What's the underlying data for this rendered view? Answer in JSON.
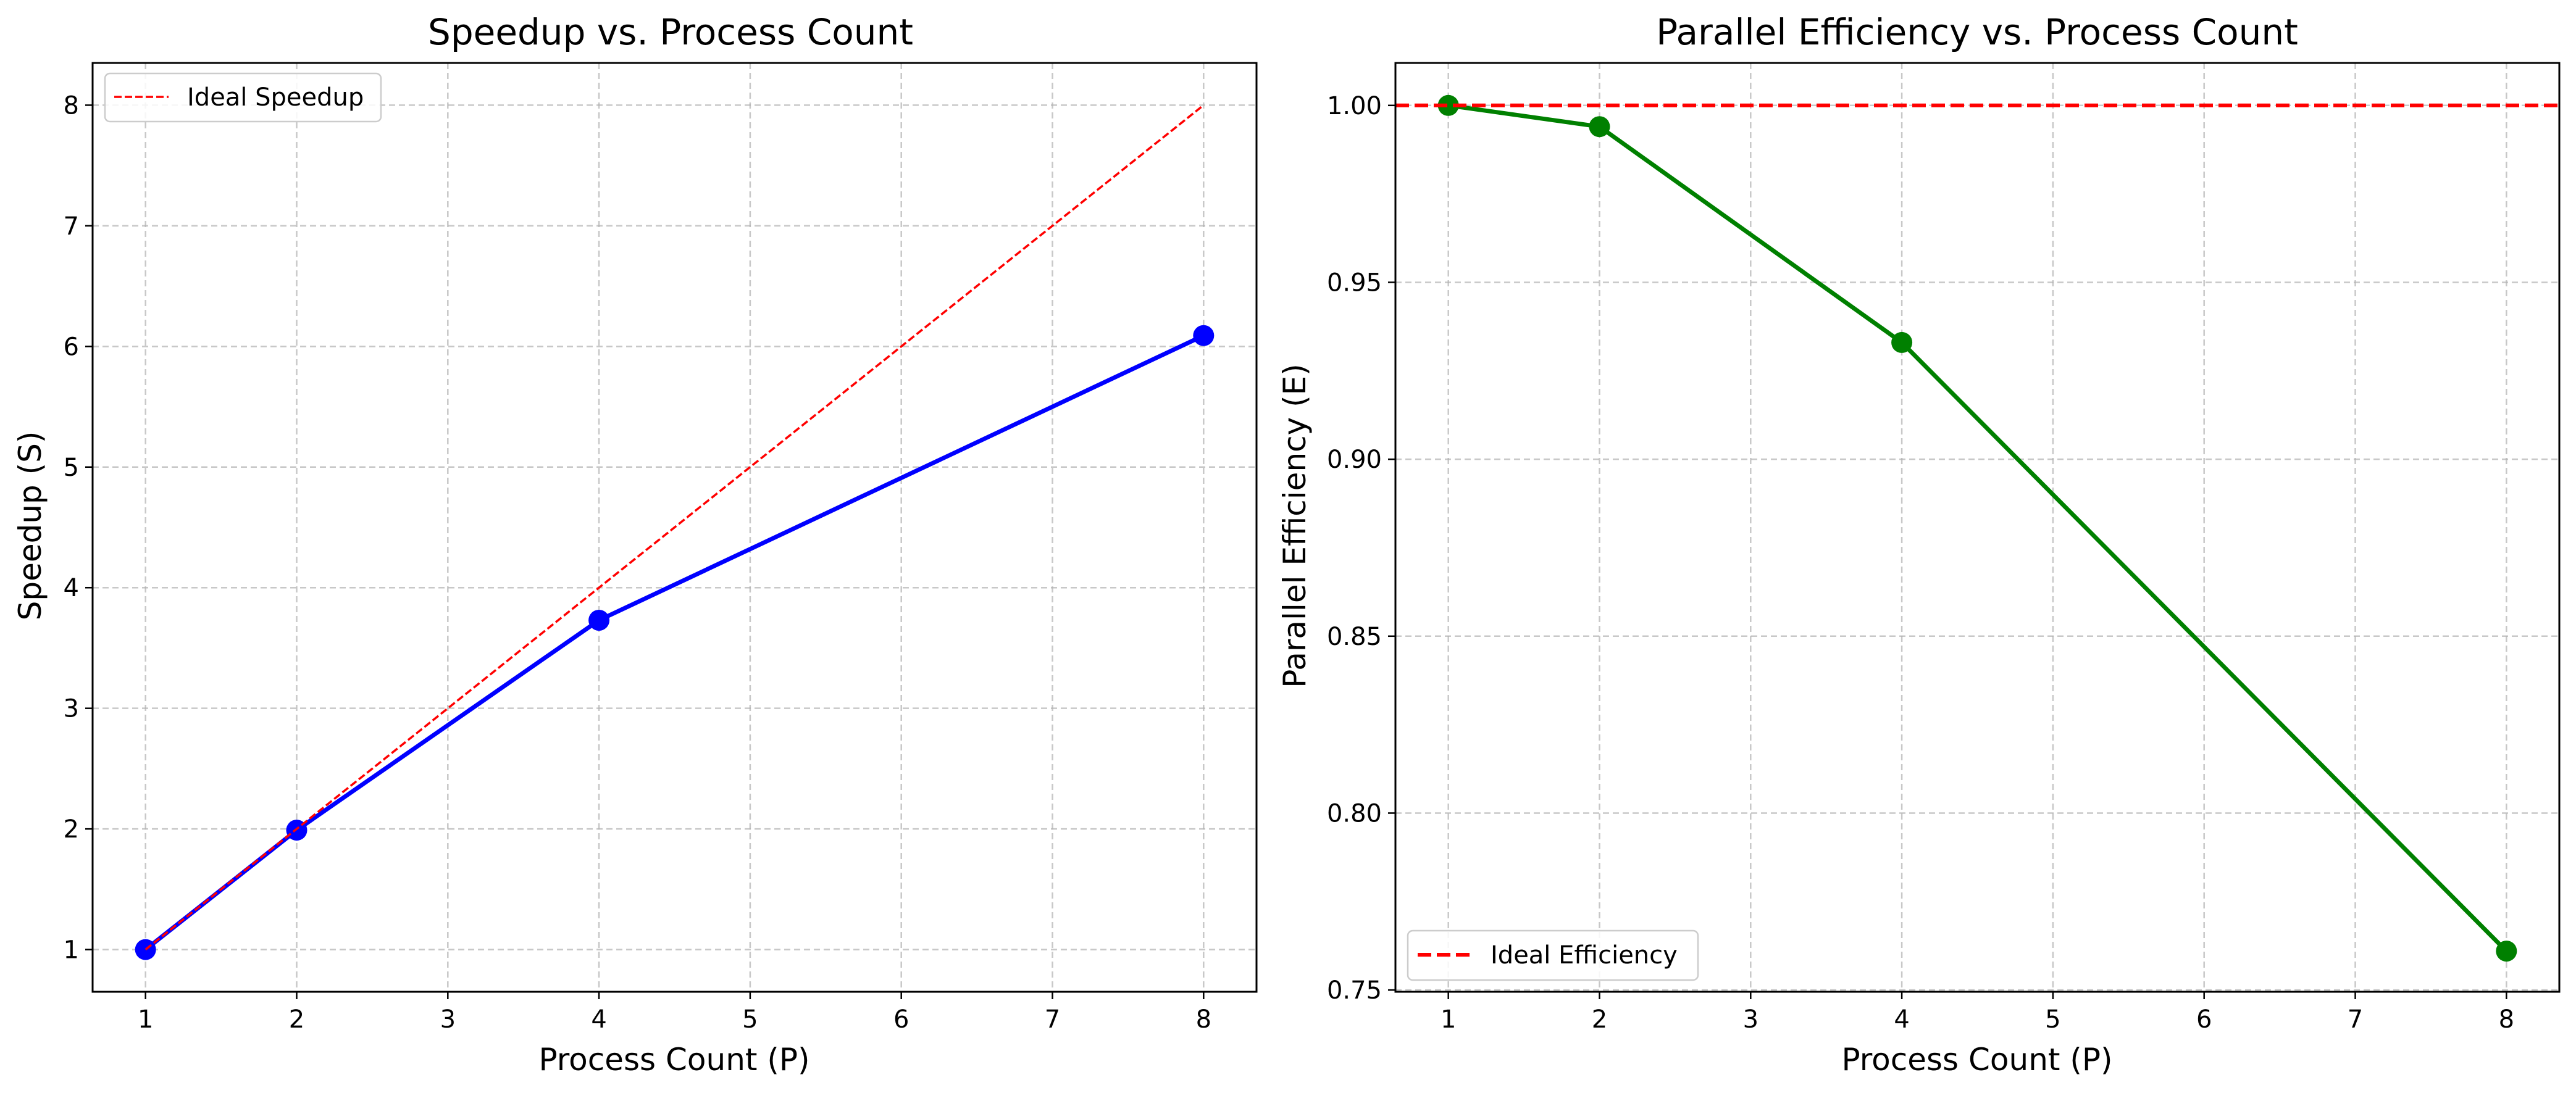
{
  "chart_data": [
    {
      "type": "line",
      "title": "Speedup vs. Process Count",
      "xlabel": "Process Count (P)",
      "ylabel": "Speedup (S)",
      "xlim": [
        0.65,
        8.35
      ],
      "ylim": [
        0.65,
        8.35
      ],
      "xticks": [
        1,
        2,
        3,
        4,
        5,
        6,
        7,
        8
      ],
      "yticks": [
        1,
        2,
        3,
        4,
        5,
        6,
        7,
        8
      ],
      "xtick_labels": [
        "1",
        "2",
        "3",
        "4",
        "5",
        "6",
        "7",
        "8"
      ],
      "ytick_labels": [
        "1",
        "2",
        "3",
        "4",
        "5",
        "6",
        "7",
        "8"
      ],
      "grid": true,
      "legend_position": "upper-left",
      "series": [
        {
          "x": [
            1,
            2,
            4,
            8
          ],
          "y": [
            1.0,
            1.99,
            3.73,
            6.09
          ],
          "color": "#0000ff",
          "style": "solid",
          "markers": true
        },
        {
          "name": "Ideal Speedup",
          "x": [
            1,
            8
          ],
          "y": [
            1,
            8
          ],
          "color": "#ff0000",
          "style": "dashed",
          "markers": false
        }
      ]
    },
    {
      "type": "line",
      "title": "Parallel Efficiency vs. Process Count",
      "xlabel": "Process Count (P)",
      "ylabel": "Parallel Efficiency (E)",
      "xlim": [
        0.65,
        8.35
      ],
      "ylim": [
        0.7495,
        1.012
      ],
      "xticks": [
        1,
        2,
        3,
        4,
        5,
        6,
        7,
        8
      ],
      "yticks": [
        0.75,
        0.8,
        0.85,
        0.9,
        0.95,
        1.0
      ],
      "xtick_labels": [
        "1",
        "2",
        "3",
        "4",
        "5",
        "6",
        "7",
        "8"
      ],
      "ytick_labels": [
        "0.75",
        "0.80",
        "0.85",
        "0.90",
        "0.95",
        "1.00"
      ],
      "grid": true,
      "legend_position": "lower-left",
      "series": [
        {
          "x": [
            1,
            2,
            4,
            8
          ],
          "y": [
            1.0,
            0.994,
            0.933,
            0.761
          ],
          "color": "#008000",
          "style": "solid",
          "markers": true
        },
        {
          "name": "Ideal Efficiency",
          "y": 1.0,
          "color": "#ff0000",
          "style": "dashed",
          "markers": false,
          "horizontal": true
        }
      ]
    }
  ]
}
